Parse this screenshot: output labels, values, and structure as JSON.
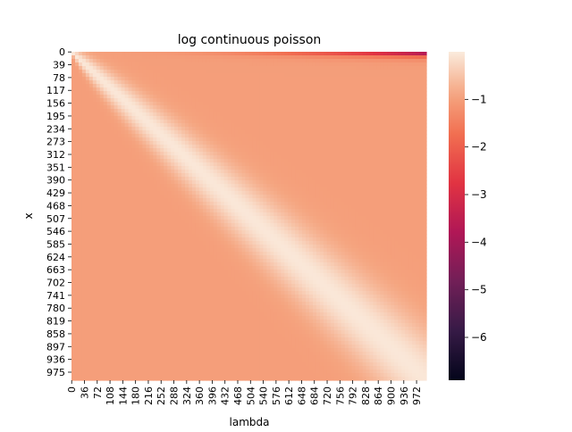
{
  "chart_data": {
    "type": "heatmap",
    "title": "log continuous poisson",
    "xlabel": "lambda",
    "ylabel": "x",
    "x_tick_labels": [
      "0",
      "36",
      "72",
      "108",
      "144",
      "180",
      "216",
      "252",
      "288",
      "324",
      "360",
      "396",
      "432",
      "468",
      "504",
      "540",
      "576",
      "612",
      "648",
      "684",
      "720",
      "756",
      "792",
      "828",
      "864",
      "900",
      "936",
      "972"
    ],
    "y_tick_labels": [
      "0",
      "39",
      "78",
      "117",
      "156",
      "195",
      "234",
      "273",
      "312",
      "351",
      "390",
      "429",
      "468",
      "507",
      "546",
      "585",
      "624",
      "663",
      "702",
      "741",
      "780",
      "819",
      "858",
      "897",
      "936",
      "975"
    ],
    "x_range": [
      0,
      999
    ],
    "y_range": [
      0,
      999
    ],
    "colorbar": {
      "ticks": [
        -6,
        -5,
        -4,
        -3,
        -2,
        -1
      ],
      "tick_labels": [
        "−6",
        "−5",
        "−4",
        "−3",
        "−2",
        "−1"
      ],
      "range": [
        -6.9,
        0
      ],
      "colormap": "rocket"
    },
    "value_summary": {
      "max_value": 0,
      "min_value": -6.9,
      "max_near": "x ≈ 0–80, lambda ≈ 0–100 (top-left)",
      "min_near": "x ≈ 0, lambda ≈ 972 (top-right)",
      "bulk_value": -1.0
    }
  }
}
